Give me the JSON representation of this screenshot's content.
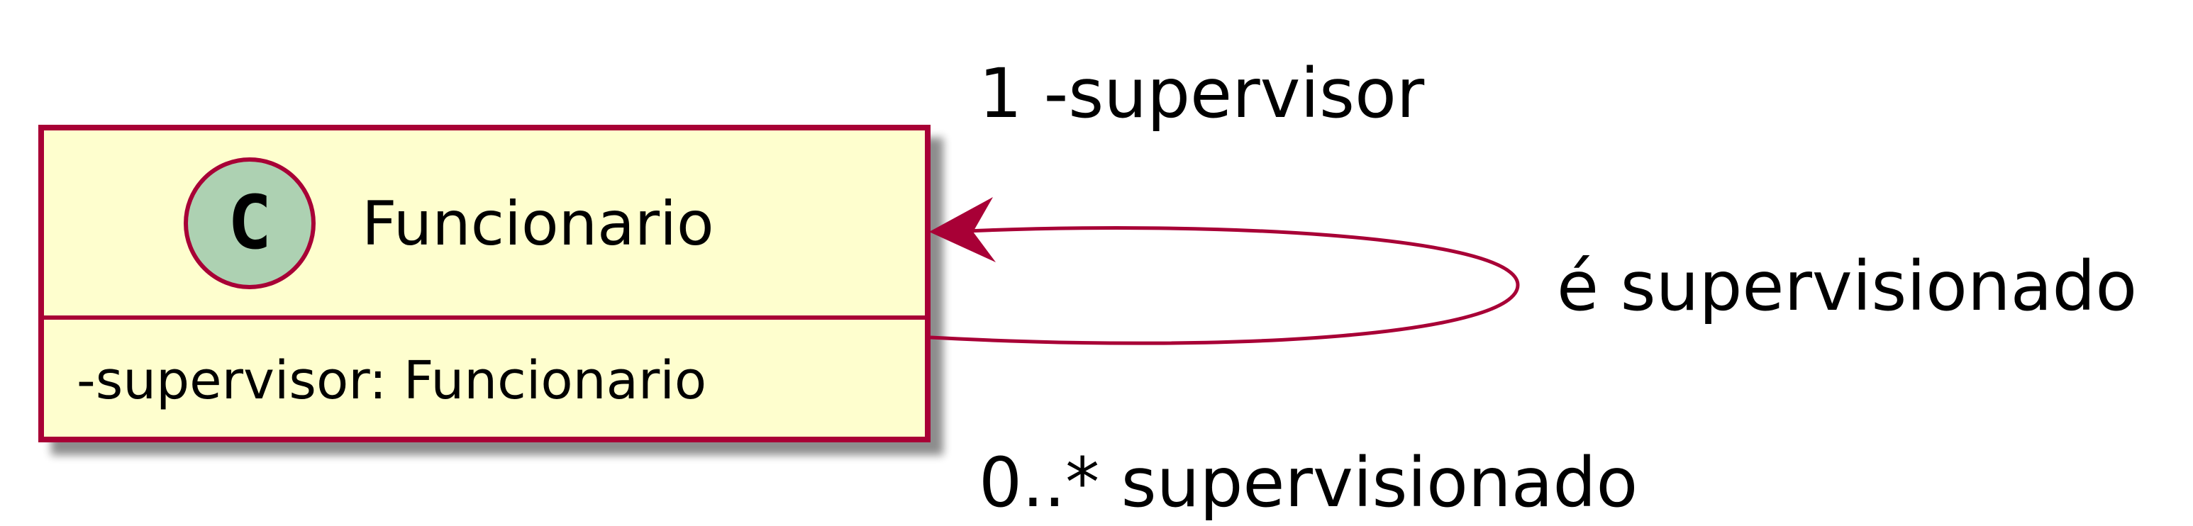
{
  "diagram": {
    "class": {
      "stereotype_letter": "C",
      "name": "Funcionario",
      "attribute": "-supervisor: Funcionario",
      "fill_color": "#FEFECE",
      "border_color": "#A80036",
      "circle_fill": "#ADD1B2"
    },
    "association": {
      "label": "é supervisionado",
      "line_color": "#A80036",
      "role_top": "1 -supervisor",
      "role_bottom": "0..* supervisionado"
    }
  }
}
